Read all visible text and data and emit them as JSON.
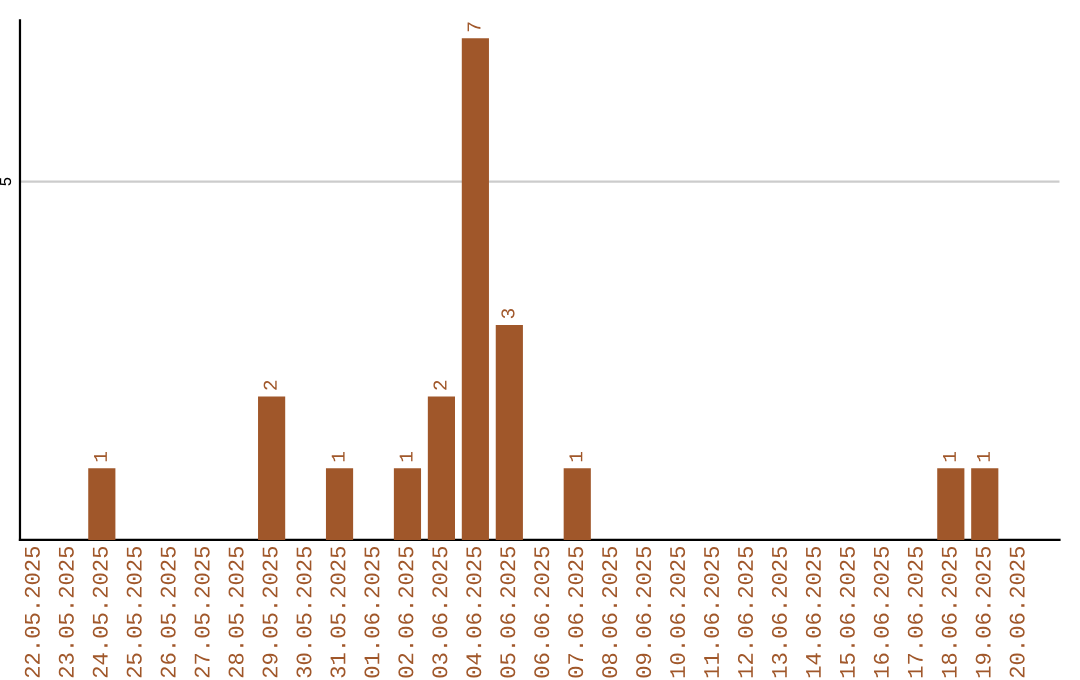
{
  "chart_data": {
    "type": "bar",
    "categories": [
      "22.05.2025",
      "23.05.2025",
      "24.05.2025",
      "25.05.2025",
      "26.05.2025",
      "27.05.2025",
      "28.05.2025",
      "29.05.2025",
      "30.05.2025",
      "31.05.2025",
      "01.06.2025",
      "02.06.2025",
      "03.06.2025",
      "04.06.2025",
      "05.06.2025",
      "06.06.2025",
      "07.06.2025",
      "08.06.2025",
      "09.06.2025",
      "10.06.2025",
      "11.06.2025",
      "12.06.2025",
      "13.06.2025",
      "14.06.2025",
      "15.06.2025",
      "16.06.2025",
      "17.06.2025",
      "18.06.2025",
      "19.06.2025",
      "20.06.2025"
    ],
    "values": [
      0,
      0,
      1,
      0,
      0,
      0,
      0,
      2,
      0,
      1,
      0,
      1,
      2,
      7,
      3,
      0,
      1,
      0,
      0,
      0,
      0,
      0,
      0,
      0,
      0,
      0,
      0,
      1,
      1,
      0
    ],
    "value_labels": [
      null,
      null,
      "1",
      null,
      null,
      null,
      null,
      "2",
      null,
      "1",
      null,
      "1",
      "2",
      "7",
      "3",
      null,
      "1",
      null,
      null,
      null,
      null,
      null,
      null,
      null,
      null,
      null,
      null,
      "1",
      "1",
      null
    ],
    "color": "#a0572a",
    "ylim": [
      0,
      7.25
    ],
    "yticks": [
      5
    ],
    "grid": "y"
  }
}
